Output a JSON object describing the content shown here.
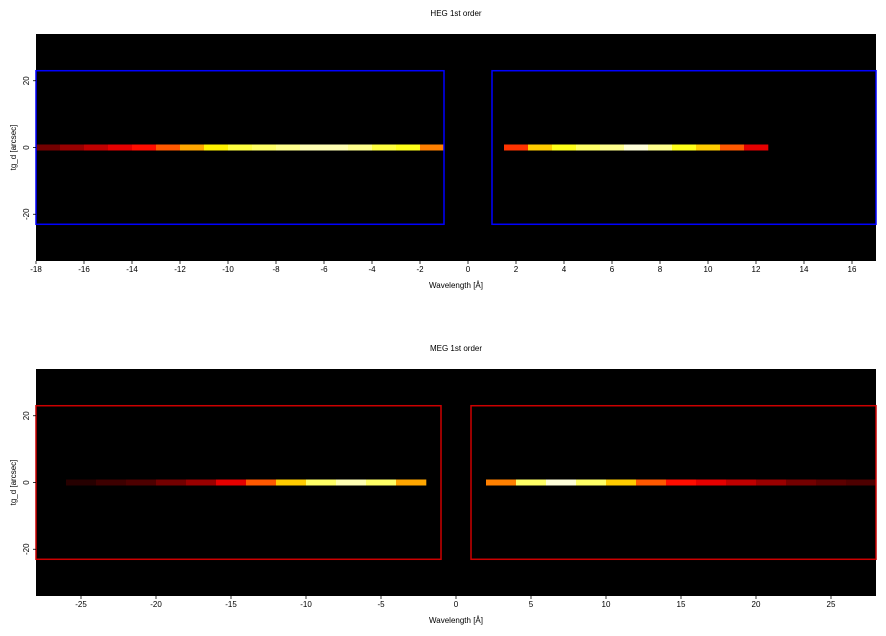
{
  "chart_data": [
    {
      "type": "spectral-image",
      "title": "HEG 1st order",
      "xlabel": "Wavelength [Å]",
      "ylabel": "tg_d [arcsec]",
      "xlim": [
        -18,
        17
      ],
      "ylim": [
        -34,
        34
      ],
      "xticks": [
        -18,
        -16,
        -14,
        -12,
        -10,
        -8,
        -6,
        -4,
        -2,
        0,
        2,
        4,
        6,
        8,
        10,
        12,
        14,
        16
      ],
      "yticks": [
        -20,
        0,
        20
      ],
      "colormap": "hot",
      "region_color": "#0000ff",
      "regions": [
        {
          "x": [
            -18,
            -1
          ],
          "y": [
            -23,
            23
          ]
        },
        {
          "x": [
            1,
            17
          ],
          "y": [
            -23,
            23
          ]
        }
      ],
      "segments": [
        {
          "bins": [
            -18,
            -17,
            -16,
            -15,
            -14,
            -13,
            -12,
            -11,
            -10,
            -9,
            -8,
            -7,
            -6,
            -5,
            -4,
            -3,
            -2,
            -1
          ],
          "values": [
            0.15,
            0.2,
            0.25,
            0.3,
            0.35,
            0.45,
            0.55,
            0.65,
            0.75,
            0.8,
            0.85,
            0.9,
            0.9,
            0.85,
            0.75,
            0.7,
            0.5
          ]
        },
        {
          "bins": [
            1.5,
            2.5,
            3.5,
            4.5,
            5.5,
            6.5,
            7.5,
            8.5,
            9.5,
            10.5,
            11.5,
            12.5
          ],
          "values": [
            0.4,
            0.6,
            0.7,
            0.8,
            0.85,
            0.95,
            0.85,
            0.7,
            0.6,
            0.45,
            0.3
          ]
        }
      ]
    },
    {
      "type": "spectral-image",
      "title": "MEG 1st order",
      "xlabel": "Wavelength [Å]",
      "ylabel": "tg_d [arcsec]",
      "xlim": [
        -28,
        28
      ],
      "ylim": [
        -34,
        34
      ],
      "xticks": [
        -25,
        -20,
        -15,
        -10,
        -5,
        0,
        5,
        10,
        15,
        20,
        25
      ],
      "yticks": [
        -20,
        0,
        20
      ],
      "colormap": "hot",
      "region_color": "#cc0000",
      "regions": [
        {
          "x": [
            -28,
            -1
          ],
          "y": [
            -23,
            23
          ]
        },
        {
          "x": [
            1,
            28
          ],
          "y": [
            -23,
            23
          ]
        }
      ],
      "segments": [
        {
          "bins": [
            -26,
            -24,
            -22,
            -20,
            -18,
            -16,
            -14,
            -12,
            -10,
            -8,
            -6,
            -4,
            -2
          ],
          "values": [
            0.05,
            0.08,
            0.1,
            0.15,
            0.2,
            0.3,
            0.45,
            0.6,
            0.8,
            0.9,
            0.8,
            0.55
          ]
        },
        {
          "bins": [
            2,
            4,
            6,
            8,
            10,
            12,
            14,
            16,
            18,
            20,
            22,
            24,
            26,
            28
          ],
          "values": [
            0.5,
            0.8,
            0.95,
            0.8,
            0.6,
            0.45,
            0.35,
            0.3,
            0.25,
            0.2,
            0.15,
            0.12,
            0.1
          ]
        }
      ]
    }
  ]
}
